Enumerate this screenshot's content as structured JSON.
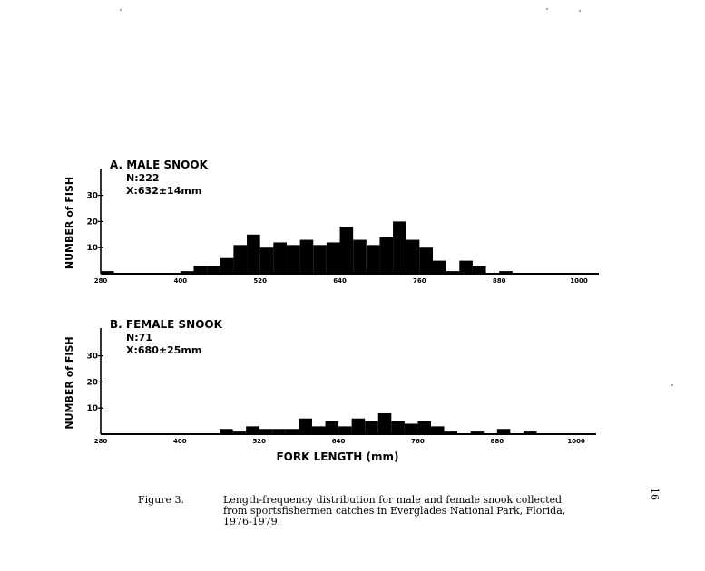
{
  "chart_data": [
    {
      "type": "bar",
      "title": "A. MALE SNOOK",
      "stats": [
        "N:222",
        "X:632±14mm"
      ],
      "xlabel": "FORK LENGTH (mm)",
      "ylabel": "NUMBER of FISH",
      "xlim": [
        280,
        1030
      ],
      "ylim": [
        0,
        35
      ],
      "xticks": [
        "280",
        "400",
        "520",
        "640",
        "760",
        "880",
        "1000"
      ],
      "yticks": [
        "10",
        "20",
        "30"
      ],
      "bin_width": 20,
      "bins": [
        {
          "x": 280,
          "y": 1
        },
        {
          "x": 300,
          "y": 0
        },
        {
          "x": 320,
          "y": 0
        },
        {
          "x": 340,
          "y": 0
        },
        {
          "x": 360,
          "y": 0
        },
        {
          "x": 380,
          "y": 0
        },
        {
          "x": 400,
          "y": 1
        },
        {
          "x": 420,
          "y": 3
        },
        {
          "x": 440,
          "y": 3
        },
        {
          "x": 460,
          "y": 6
        },
        {
          "x": 480,
          "y": 11
        },
        {
          "x": 500,
          "y": 15
        },
        {
          "x": 520,
          "y": 10
        },
        {
          "x": 540,
          "y": 12
        },
        {
          "x": 560,
          "y": 11
        },
        {
          "x": 580,
          "y": 13
        },
        {
          "x": 600,
          "y": 11
        },
        {
          "x": 620,
          "y": 12
        },
        {
          "x": 640,
          "y": 18
        },
        {
          "x": 660,
          "y": 13
        },
        {
          "x": 680,
          "y": 11
        },
        {
          "x": 700,
          "y": 14
        },
        {
          "x": 720,
          "y": 20
        },
        {
          "x": 740,
          "y": 13
        },
        {
          "x": 760,
          "y": 10
        },
        {
          "x": 780,
          "y": 5
        },
        {
          "x": 800,
          "y": 1
        },
        {
          "x": 820,
          "y": 5
        },
        {
          "x": 840,
          "y": 3
        },
        {
          "x": 860,
          "y": 0
        },
        {
          "x": 880,
          "y": 1
        },
        {
          "x": 900,
          "y": 0
        },
        {
          "x": 920,
          "y": 0
        },
        {
          "x": 940,
          "y": 0
        },
        {
          "x": 960,
          "y": 0
        },
        {
          "x": 980,
          "y": 0
        },
        {
          "x": 1000,
          "y": 0
        },
        {
          "x": 1020,
          "y": 0
        }
      ]
    },
    {
      "type": "bar",
      "title": "B. FEMALE SNOOK",
      "stats": [
        "N:71",
        "X:680±25mm"
      ],
      "xlabel": "FORK LENGTH (mm)",
      "ylabel": "NUMBER of FISH",
      "xlim": [
        280,
        1030
      ],
      "ylim": [
        0,
        35
      ],
      "xticks": [
        "280",
        "400",
        "520",
        "640",
        "760",
        "880",
        "1000"
      ],
      "yticks": [
        "10",
        "20",
        "30"
      ],
      "bin_width": 20,
      "bins": [
        {
          "x": 280,
          "y": 0
        },
        {
          "x": 300,
          "y": 0
        },
        {
          "x": 320,
          "y": 0
        },
        {
          "x": 340,
          "y": 0
        },
        {
          "x": 360,
          "y": 0
        },
        {
          "x": 380,
          "y": 0
        },
        {
          "x": 400,
          "y": 0
        },
        {
          "x": 420,
          "y": 0
        },
        {
          "x": 440,
          "y": 0
        },
        {
          "x": 460,
          "y": 2
        },
        {
          "x": 480,
          "y": 1
        },
        {
          "x": 500,
          "y": 3
        },
        {
          "x": 520,
          "y": 2
        },
        {
          "x": 540,
          "y": 2
        },
        {
          "x": 560,
          "y": 2
        },
        {
          "x": 580,
          "y": 6
        },
        {
          "x": 600,
          "y": 3
        },
        {
          "x": 620,
          "y": 5
        },
        {
          "x": 640,
          "y": 3
        },
        {
          "x": 660,
          "y": 6
        },
        {
          "x": 680,
          "y": 5
        },
        {
          "x": 700,
          "y": 8
        },
        {
          "x": 720,
          "y": 5
        },
        {
          "x": 740,
          "y": 4
        },
        {
          "x": 760,
          "y": 5
        },
        {
          "x": 780,
          "y": 3
        },
        {
          "x": 800,
          "y": 1
        },
        {
          "x": 820,
          "y": 0
        },
        {
          "x": 840,
          "y": 1
        },
        {
          "x": 860,
          "y": 0
        },
        {
          "x": 880,
          "y": 2
        },
        {
          "x": 900,
          "y": 0
        },
        {
          "x": 920,
          "y": 1
        },
        {
          "x": 940,
          "y": 0
        },
        {
          "x": 960,
          "y": 0
        },
        {
          "x": 980,
          "y": 0
        },
        {
          "x": 1000,
          "y": 0
        },
        {
          "x": 1020,
          "y": 0
        }
      ]
    }
  ],
  "caption": {
    "number": "Figure 3.",
    "text": "Length-frequency distribution for male and female snook collected from sportsfishermen catches in Everglades National Park, Florida, 1976-1979."
  },
  "page_number": "16",
  "colors": {
    "ink": "#000000",
    "paper": "#ffffff"
  }
}
